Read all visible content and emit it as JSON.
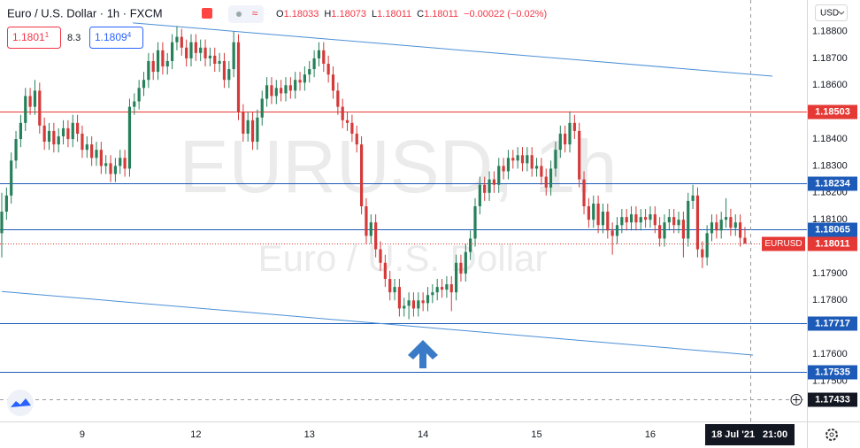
{
  "header": {
    "title": "Euro / U.S. Dollar · 1h · FXCM",
    "ohlc": [
      [
        "O",
        "1.18033"
      ],
      [
        "H",
        "1.18073"
      ],
      [
        "L",
        "1.18011"
      ],
      [
        "C",
        "1.18011"
      ]
    ],
    "change": "−0.00022 (−0.02%)"
  },
  "trade": {
    "sell": "1.1801",
    "sell_pip": "1",
    "spread": "8.3",
    "buy": "1.1809",
    "buy_pip": "4"
  },
  "currency": "USD",
  "watermark": {
    "symbol": "EURUSD, 1h",
    "name": "Euro / U.S. Dollar"
  },
  "crosshair": {
    "price": 1.17433,
    "date": "18 Jul '21",
    "time": "21:00"
  },
  "chart_data": {
    "type": "candlestick",
    "categories": [
      null,
      null,
      null,
      null,
      null,
      null,
      null,
      null,
      null,
      null,
      null,
      null,
      null,
      null,
      null,
      null,
      null,
      "9",
      null,
      null,
      null,
      null,
      null,
      null,
      null,
      null,
      null,
      null,
      null,
      null,
      null,
      null,
      null,
      null,
      null,
      null,
      null,
      null,
      null,
      null,
      null,
      "12",
      null,
      null,
      null,
      null,
      null,
      null,
      null,
      null,
      null,
      null,
      null,
      null,
      null,
      null,
      null,
      null,
      null,
      null,
      null,
      null,
      null,
      null,
      null,
      "13",
      null,
      null,
      null,
      null,
      null,
      null,
      null,
      null,
      null,
      null,
      null,
      null,
      null,
      null,
      null,
      null,
      null,
      null,
      null,
      null,
      null,
      null,
      null,
      "14",
      null,
      null,
      null,
      null,
      null,
      null,
      null,
      null,
      null,
      null,
      null,
      null,
      null,
      null,
      null,
      null,
      null,
      null,
      null,
      null,
      null,
      null,
      null,
      "15",
      null,
      null,
      null,
      null,
      null,
      null,
      null,
      null,
      null,
      null,
      null,
      null,
      null,
      null,
      null,
      null,
      null,
      null,
      null,
      null,
      null,
      null,
      null,
      "16",
      null,
      null,
      null,
      null,
      null,
      null,
      null,
      null,
      null,
      null,
      null,
      null,
      null,
      null,
      null,
      null,
      null,
      null,
      null,
      null
    ],
    "candles": [
      [
        1.1805,
        1.182,
        1.1796,
        1.1813
      ],
      [
        1.1813,
        1.1822,
        1.181,
        1.1819
      ],
      [
        1.1819,
        1.1835,
        1.1816,
        1.1832
      ],
      [
        1.1832,
        1.1843,
        1.1829,
        1.184
      ],
      [
        1.184,
        1.1849,
        1.1837,
        1.1846
      ],
      [
        1.1846,
        1.1859,
        1.1843,
        1.1856
      ],
      [
        1.1856,
        1.1859,
        1.1849,
        1.1852
      ],
      [
        1.1852,
        1.1862,
        1.1849,
        1.1858
      ],
      [
        1.1858,
        1.1861,
        1.1842,
        1.1845
      ],
      [
        1.1845,
        1.1848,
        1.1836,
        1.1839
      ],
      [
        1.1839,
        1.1846,
        1.1836,
        1.1843
      ],
      [
        1.1843,
        1.1846,
        1.1835,
        1.1838
      ],
      [
        1.1838,
        1.1844,
        1.1835,
        1.1841
      ],
      [
        1.1841,
        1.1847,
        1.1838,
        1.1844
      ],
      [
        1.1844,
        1.1847,
        1.1837,
        1.184
      ],
      [
        1.184,
        1.1849,
        1.1837,
        1.1846
      ],
      [
        1.1846,
        1.1849,
        1.1839,
        1.1842
      ],
      [
        1.1842,
        1.1845,
        1.1833,
        1.1836
      ],
      [
        1.1836,
        1.1841,
        1.1833,
        1.1838
      ],
      [
        1.1838,
        1.1841,
        1.183,
        1.1833
      ],
      [
        1.1833,
        1.1839,
        1.183,
        1.1836
      ],
      [
        1.1836,
        1.1839,
        1.1827,
        1.183
      ],
      [
        1.183,
        1.1834,
        1.1827,
        1.1831
      ],
      [
        1.1831,
        1.1834,
        1.1824,
        1.1827
      ],
      [
        1.1827,
        1.1833,
        1.1824,
        1.183
      ],
      [
        1.183,
        1.1836,
        1.1827,
        1.1833
      ],
      [
        1.1833,
        1.1836,
        1.1826,
        1.1829
      ],
      [
        1.1829,
        1.1855,
        1.1826,
        1.1852
      ],
      [
        1.1852,
        1.1857,
        1.1849,
        1.1854
      ],
      [
        1.1854,
        1.1862,
        1.1851,
        1.1859
      ],
      [
        1.1859,
        1.1865,
        1.1856,
        1.1862
      ],
      [
        1.1862,
        1.1872,
        1.1859,
        1.1869
      ],
      [
        1.1869,
        1.1872,
        1.1862,
        1.1865
      ],
      [
        1.1865,
        1.1876,
        1.1862,
        1.1873
      ],
      [
        1.1873,
        1.1876,
        1.1864,
        1.1867
      ],
      [
        1.1867,
        1.1872,
        1.1864,
        1.1869
      ],
      [
        1.1869,
        1.1879,
        1.1866,
        1.1876
      ],
      [
        1.1876,
        1.1882,
        1.1873,
        1.1878
      ],
      [
        1.1878,
        1.1881,
        1.1871,
        1.1874
      ],
      [
        1.1874,
        1.1877,
        1.1867,
        1.187
      ],
      [
        1.187,
        1.1879,
        1.1867,
        1.1876
      ],
      [
        1.1876,
        1.1879,
        1.1869,
        1.1872
      ],
      [
        1.1872,
        1.1877,
        1.1869,
        1.1874
      ],
      [
        1.1874,
        1.1877,
        1.1867,
        1.187
      ],
      [
        1.187,
        1.1874,
        1.1867,
        1.1871
      ],
      [
        1.1871,
        1.1874,
        1.1865,
        1.1868
      ],
      [
        1.1868,
        1.1872,
        1.1865,
        1.1869
      ],
      [
        1.1869,
        1.1872,
        1.1859,
        1.1862
      ],
      [
        1.1862,
        1.1869,
        1.1859,
        1.1866
      ],
      [
        1.1866,
        1.188,
        1.1863,
        1.1876
      ],
      [
        1.1876,
        1.1879,
        1.1847,
        1.185
      ],
      [
        1.185,
        1.1853,
        1.1839,
        1.1842
      ],
      [
        1.1842,
        1.185,
        1.1839,
        1.1847
      ],
      [
        1.1847,
        1.185,
        1.1836,
        1.1839
      ],
      [
        1.1839,
        1.1851,
        1.1836,
        1.1848
      ],
      [
        1.1848,
        1.1858,
        1.1845,
        1.1855
      ],
      [
        1.1855,
        1.1863,
        1.1852,
        1.186
      ],
      [
        1.186,
        1.1863,
        1.1853,
        1.1856
      ],
      [
        1.1856,
        1.1862,
        1.1853,
        1.1859
      ],
      [
        1.1859,
        1.1862,
        1.1854,
        1.1857
      ],
      [
        1.1857,
        1.1863,
        1.1854,
        1.186
      ],
      [
        1.186,
        1.1863,
        1.1855,
        1.1858
      ],
      [
        1.1858,
        1.1865,
        1.1855,
        1.1862
      ],
      [
        1.1862,
        1.1865,
        1.1858,
        1.1861
      ],
      [
        1.1861,
        1.1867,
        1.1858,
        1.1864
      ],
      [
        1.1864,
        1.1869,
        1.1861,
        1.1866
      ],
      [
        1.1866,
        1.1873,
        1.1863,
        1.187
      ],
      [
        1.187,
        1.1876,
        1.1867,
        1.1873
      ],
      [
        1.1873,
        1.1876,
        1.1865,
        1.1868
      ],
      [
        1.1868,
        1.1871,
        1.1861,
        1.1864
      ],
      [
        1.1864,
        1.1867,
        1.1855,
        1.1858
      ],
      [
        1.1858,
        1.1861,
        1.1849,
        1.1852
      ],
      [
        1.1852,
        1.1855,
        1.1844,
        1.1847
      ],
      [
        1.1847,
        1.185,
        1.1843,
        1.1846
      ],
      [
        1.1846,
        1.1849,
        1.1839,
        1.1842
      ],
      [
        1.1842,
        1.1845,
        1.1835,
        1.1838
      ],
      [
        1.1838,
        1.1841,
        1.1812,
        1.1815
      ],
      [
        1.1815,
        1.1818,
        1.1801,
        1.1804
      ],
      [
        1.1804,
        1.1812,
        1.1801,
        1.1809
      ],
      [
        1.1809,
        1.1812,
        1.1796,
        1.1799
      ],
      [
        1.1799,
        1.1802,
        1.1791,
        1.1794
      ],
      [
        1.1794,
        1.1797,
        1.1785,
        1.1788
      ],
      [
        1.1788,
        1.1791,
        1.178,
        1.1783
      ],
      [
        1.1783,
        1.1788,
        1.178,
        1.1785
      ],
      [
        1.1785,
        1.1788,
        1.1774,
        1.1777
      ],
      [
        1.1777,
        1.1781,
        1.1774,
        1.1778
      ],
      [
        1.1778,
        1.1783,
        1.1773,
        1.178
      ],
      [
        1.178,
        1.1783,
        1.1774,
        1.1777
      ],
      [
        1.1777,
        1.1783,
        1.1774,
        1.178
      ],
      [
        1.178,
        1.1783,
        1.1776,
        1.1779
      ],
      [
        1.1779,
        1.1785,
        1.1776,
        1.1782
      ],
      [
        1.1782,
        1.1786,
        1.1779,
        1.1783
      ],
      [
        1.1783,
        1.1788,
        1.178,
        1.1785
      ],
      [
        1.1785,
        1.1788,
        1.1781,
        1.1784
      ],
      [
        1.1784,
        1.1789,
        1.1781,
        1.1786
      ],
      [
        1.1786,
        1.1789,
        1.1776,
        1.1783
      ],
      [
        1.1783,
        1.1797,
        1.178,
        1.1794
      ],
      [
        1.1794,
        1.1797,
        1.1787,
        1.179
      ],
      [
        1.179,
        1.1801,
        1.1787,
        1.1798
      ],
      [
        1.1798,
        1.1806,
        1.1795,
        1.1803
      ],
      [
        1.1803,
        1.1818,
        1.18,
        1.1815
      ],
      [
        1.1815,
        1.1826,
        1.1812,
        1.1823
      ],
      [
        1.1823,
        1.1826,
        1.1817,
        1.182
      ],
      [
        1.182,
        1.1828,
        1.1817,
        1.1825
      ],
      [
        1.1825,
        1.1828,
        1.182,
        1.1823
      ],
      [
        1.1823,
        1.1833,
        1.182,
        1.183
      ],
      [
        1.183,
        1.1833,
        1.1825,
        1.1828
      ],
      [
        1.1828,
        1.1836,
        1.1825,
        1.1833
      ],
      [
        1.1833,
        1.1836,
        1.1829,
        1.1832
      ],
      [
        1.1832,
        1.1837,
        1.1829,
        1.1834
      ],
      [
        1.1834,
        1.1837,
        1.1828,
        1.1831
      ],
      [
        1.1831,
        1.1837,
        1.1828,
        1.1834
      ],
      [
        1.1834,
        1.1837,
        1.1826,
        1.1829
      ],
      [
        1.1829,
        1.1833,
        1.1826,
        1.183
      ],
      [
        1.183,
        1.1833,
        1.1823,
        1.1826
      ],
      [
        1.1826,
        1.1829,
        1.1819,
        1.1822
      ],
      [
        1.1822,
        1.1832,
        1.1819,
        1.1829
      ],
      [
        1.1829,
        1.1839,
        1.1826,
        1.1836
      ],
      [
        1.1836,
        1.1845,
        1.1833,
        1.1842
      ],
      [
        1.1842,
        1.1845,
        1.1835,
        1.1838
      ],
      [
        1.1838,
        1.18503,
        1.1835,
        1.1846
      ],
      [
        1.1846,
        1.1849,
        1.184,
        1.1843
      ],
      [
        1.1843,
        1.1846,
        1.1822,
        1.1825
      ],
      [
        1.1825,
        1.1828,
        1.1812,
        1.1815
      ],
      [
        1.1815,
        1.1818,
        1.1807,
        1.181
      ],
      [
        1.181,
        1.1819,
        1.1807,
        1.1816
      ],
      [
        1.1816,
        1.1819,
        1.1805,
        1.1808
      ],
      [
        1.1808,
        1.1816,
        1.1805,
        1.1813
      ],
      [
        1.1813,
        1.1816,
        1.1803,
        1.1806
      ],
      [
        1.1806,
        1.1809,
        1.1797,
        1.1804
      ],
      [
        1.1804,
        1.1811,
        1.1801,
        1.1808
      ],
      [
        1.1808,
        1.1814,
        1.1805,
        1.1811
      ],
      [
        1.1811,
        1.1814,
        1.1806,
        1.1809
      ],
      [
        1.1809,
        1.1815,
        1.1806,
        1.1812
      ],
      [
        1.1812,
        1.1815,
        1.1806,
        1.1809
      ],
      [
        1.1809,
        1.1814,
        1.1806,
        1.1811
      ],
      [
        1.1811,
        1.1814,
        1.1807,
        1.181
      ],
      [
        1.181,
        1.1815,
        1.1807,
        1.1812
      ],
      [
        1.1812,
        1.1815,
        1.1805,
        1.1808
      ],
      [
        1.1808,
        1.1811,
        1.18,
        1.1803
      ],
      [
        1.1803,
        1.1812,
        1.18,
        1.1809
      ],
      [
        1.1809,
        1.1814,
        1.1806,
        1.1811
      ],
      [
        1.1811,
        1.1814,
        1.1805,
        1.1808
      ],
      [
        1.1808,
        1.1813,
        1.1805,
        1.181
      ],
      [
        1.181,
        1.1813,
        1.1796,
        1.1803
      ],
      [
        1.1803,
        1.182,
        1.18,
        1.1817
      ],
      [
        1.1817,
        1.1823,
        1.1814,
        1.1819
      ],
      [
        1.1819,
        1.1822,
        1.1796,
        1.1799
      ],
      [
        1.1799,
        1.1802,
        1.1792,
        1.1796
      ],
      [
        1.1796,
        1.1808,
        1.1793,
        1.1805
      ],
      [
        1.1805,
        1.1812,
        1.1802,
        1.1809
      ],
      [
        1.1809,
        1.1812,
        1.1803,
        1.1806
      ],
      [
        1.1806,
        1.1813,
        1.1803,
        1.181
      ],
      [
        1.181,
        1.1818,
        1.1807,
        1.1811
      ],
      [
        1.1811,
        1.1814,
        1.1804,
        1.1807
      ],
      [
        1.1807,
        1.1812,
        1.1804,
        1.1809
      ],
      [
        1.1809,
        1.1812,
        1.18,
        1.18033
      ],
      [
        1.18033,
        1.18073,
        1.18011,
        1.18011
      ]
    ],
    "up_color": "#26805a",
    "down_color": "#d43a3a",
    "ylim": [
      1.1735,
      1.18917
    ],
    "yticks": [
      {
        "value": 1.175,
        "label": "1.17500"
      },
      {
        "value": 1.176,
        "label": "1.17600"
      },
      {
        "value": 1.178,
        "label": "1.17800"
      },
      {
        "value": 1.179,
        "label": "1.17900"
      },
      {
        "value": 1.181,
        "label": "1.18100"
      },
      {
        "value": 1.182,
        "label": "1.18200"
      },
      {
        "value": 1.183,
        "label": "1.18300"
      },
      {
        "value": 1.184,
        "label": "1.18400"
      },
      {
        "value": 1.186,
        "label": "1.18600"
      },
      {
        "value": 1.187,
        "label": "1.18700"
      },
      {
        "value": 1.188,
        "label": "1.18800"
      }
    ],
    "grid": false,
    "hlines": [
      {
        "value": 1.18503,
        "color": "#e53935"
      },
      {
        "value": 1.18234,
        "color": "#1e5bb8"
      },
      {
        "value": 1.18065,
        "color": "#1e5bb8"
      },
      {
        "value": 1.17717,
        "color": "#1e5bb8"
      },
      {
        "value": 1.17535,
        "color": "#1e5bb8"
      }
    ],
    "last_price": {
      "label": "EURUSD",
      "value": 1.18011,
      "color": "#e53935"
    },
    "trendlines": [
      {
        "x": [
          27.7,
          162.8
        ],
        "y": [
          1.18832,
          1.18634
        ],
        "color": "#4a8fd6"
      },
      {
        "x": [
          0,
          158.7
        ],
        "y": [
          1.17833,
          1.17597
        ],
        "color": "#4a8fd6"
      }
    ]
  }
}
